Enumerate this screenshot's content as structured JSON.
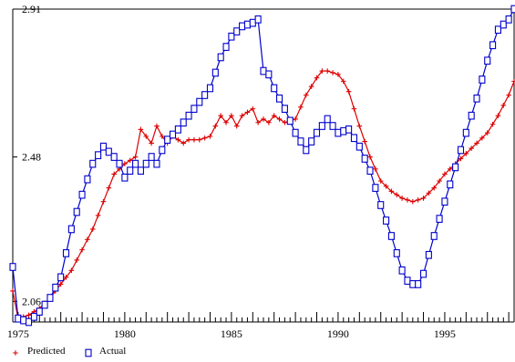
{
  "chart_data": {
    "type": "line",
    "x_tick_labels": [
      "1975",
      "1980",
      "1985",
      "1990",
      "1995"
    ],
    "y_tick_labels": [
      "2.06",
      "2.48",
      "2.91"
    ],
    "xlim": [
      1974.75,
      1998.25
    ],
    "ylim": [
      2.0,
      2.91
    ],
    "grid": false,
    "legend_position": "bottom-left",
    "series": [
      {
        "name": "Predicted",
        "color": "#dd0000",
        "marker": "plus",
        "x": [
          1974.75,
          1975.0,
          1975.5,
          1976.0,
          1976.5,
          1977.0,
          1977.5,
          1978.0,
          1978.5,
          1979.0,
          1979.5,
          1980.0,
          1980.5,
          1980.75,
          1981.0,
          1981.25,
          1981.5,
          1981.75,
          1982.0,
          1982.25,
          1982.5,
          1982.75,
          1983.0,
          1983.5,
          1984.0,
          1984.5,
          1984.75,
          1985.0,
          1985.25,
          1985.5,
          1986.0,
          1986.25,
          1986.5,
          1986.75,
          1987.0,
          1987.5,
          1988.0,
          1988.5,
          1989.0,
          1989.25,
          1989.5,
          1990.0,
          1990.25,
          1990.5,
          1991.0,
          1991.5,
          1992.0,
          1992.5,
          1993.0,
          1993.5,
          1994.0,
          1994.5,
          1995.0,
          1995.5,
          1996.0,
          1996.5,
          1997.0,
          1997.5,
          1998.0,
          1998.25
        ],
        "y": [
          2.09,
          2.01,
          2.02,
          2.04,
          2.07,
          2.11,
          2.15,
          2.21,
          2.27,
          2.35,
          2.43,
          2.46,
          2.48,
          2.56,
          2.54,
          2.52,
          2.57,
          2.54,
          2.52,
          2.54,
          2.53,
          2.52,
          2.53,
          2.53,
          2.54,
          2.6,
          2.58,
          2.6,
          2.57,
          2.6,
          2.62,
          2.58,
          2.59,
          2.58,
          2.6,
          2.58,
          2.59,
          2.66,
          2.71,
          2.73,
          2.73,
          2.72,
          2.7,
          2.67,
          2.57,
          2.48,
          2.41,
          2.38,
          2.36,
          2.35,
          2.36,
          2.39,
          2.43,
          2.46,
          2.49,
          2.52,
          2.55,
          2.6,
          2.66,
          2.7
        ]
      },
      {
        "name": "Actual",
        "color": "#0000cc",
        "marker": "square",
        "x": [
          1974.75,
          1975.0,
          1975.5,
          1976.0,
          1976.5,
          1977.0,
          1977.5,
          1978.0,
          1978.5,
          1979.0,
          1979.5,
          1979.75,
          1980.0,
          1980.25,
          1980.5,
          1980.75,
          1981.0,
          1981.25,
          1981.5,
          1981.75,
          1982.0,
          1982.5,
          1983.0,
          1983.5,
          1984.0,
          1984.5,
          1985.0,
          1985.5,
          1986.0,
          1986.25,
          1986.5,
          1986.75,
          1987.0,
          1987.5,
          1988.0,
          1988.5,
          1989.0,
          1989.5,
          1990.0,
          1990.5,
          1991.0,
          1991.5,
          1992.0,
          1992.5,
          1993.0,
          1993.25,
          1993.5,
          1993.75,
          1994.0,
          1994.5,
          1995.0,
          1995.5,
          1996.0,
          1996.5,
          1997.0,
          1997.5,
          1998.0,
          1998.25
        ],
        "y": [
          2.16,
          2.01,
          2.0,
          2.03,
          2.07,
          2.13,
          2.27,
          2.37,
          2.46,
          2.51,
          2.48,
          2.46,
          2.42,
          2.44,
          2.46,
          2.44,
          2.46,
          2.48,
          2.46,
          2.5,
          2.53,
          2.56,
          2.6,
          2.64,
          2.68,
          2.77,
          2.83,
          2.86,
          2.87,
          2.88,
          2.73,
          2.72,
          2.68,
          2.62,
          2.55,
          2.5,
          2.55,
          2.59,
          2.55,
          2.56,
          2.51,
          2.44,
          2.34,
          2.25,
          2.15,
          2.12,
          2.11,
          2.11,
          2.14,
          2.25,
          2.35,
          2.45,
          2.55,
          2.65,
          2.76,
          2.85,
          2.88,
          2.91
        ]
      }
    ]
  }
}
